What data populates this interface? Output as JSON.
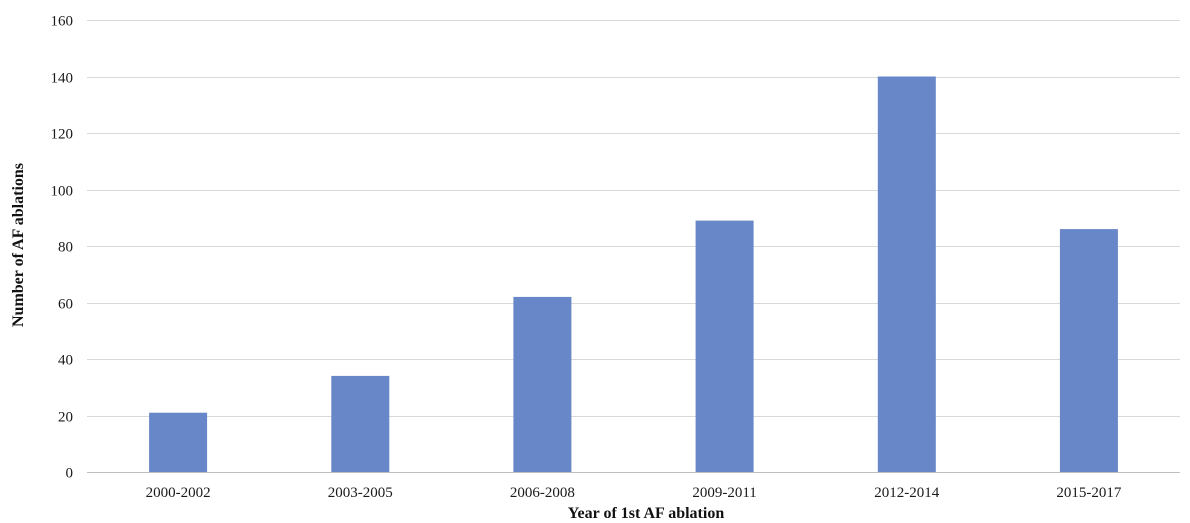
{
  "chart_data": {
    "type": "bar",
    "title": "",
    "xlabel": "Year of 1st AF ablation",
    "ylabel": "Number of AF ablations",
    "categories": [
      "2000-2002",
      "2003-2005",
      "2006-2008",
      "2009-2011",
      "2012-2014",
      "2015-2017"
    ],
    "series": [
      {
        "values": [
          21,
          34,
          62,
          89,
          140,
          86
        ]
      }
    ],
    "ylim": [
      0,
      160
    ],
    "yticks": [
      0,
      20,
      40,
      60,
      80,
      100,
      120,
      140,
      160
    ],
    "grid": true,
    "legend": "none",
    "colors": {
      "bar": "#6787c8",
      "grid": "#d9d9d9",
      "text": "#1a1a1a"
    }
  }
}
